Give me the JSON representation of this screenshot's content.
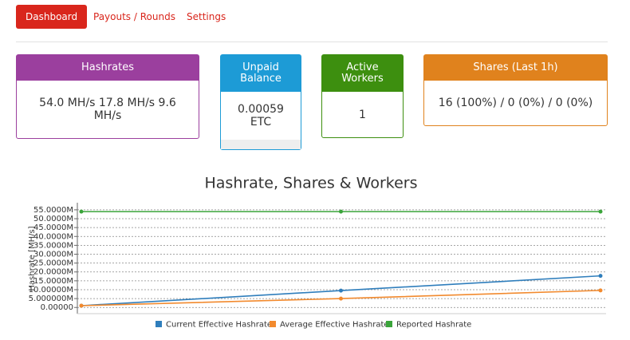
{
  "nav": {
    "tabs": [
      "Dashboard",
      "Payouts / Rounds",
      "Settings"
    ]
  },
  "cards": [
    {
      "title": "Hashrates",
      "body": "54.0 MH/s  17.8 MH/s  9.6 MH/s"
    },
    {
      "title": "Unpaid Balance",
      "body": "0.00059 ETC"
    },
    {
      "title": "Active Workers",
      "body": "1"
    },
    {
      "title": "Shares (Last 1h)",
      "body": "16 (100%) / 0 (0%) / 0 (0%)"
    }
  ],
  "chart_data": {
    "type": "line",
    "title": "Hashrate, Shares & Workers",
    "y_label": "Hashrate [MH/s]",
    "categories": [
      null,
      null,
      null
    ],
    "series": [
      {
        "name": "Current Effective Hashrate",
        "color": "#2f7ebc",
        "values": [
          1,
          9.5,
          17.8
        ]
      },
      {
        "name": "Average Effective Hashrate",
        "color": "#f28a2e",
        "values": [
          1,
          5,
          9.6
        ]
      },
      {
        "name": "Reported Hashrate",
        "color": "#3aa43a",
        "values": [
          54,
          54,
          54
        ]
      }
    ],
    "ylim": [
      -3.5,
      59
    ],
    "yticks": [
      {
        "value": 0,
        "label": "0.00000"
      },
      {
        "value": 5,
        "label": "5.000000M"
      },
      {
        "value": 10,
        "label": "10.00000M"
      },
      {
        "value": 15,
        "label": "15.0000M"
      },
      {
        "value": 20,
        "label": "20.0000M"
      },
      {
        "value": 25,
        "label": "25.0000M"
      },
      {
        "value": 30,
        "label": "30.0000M"
      },
      {
        "value": 35,
        "label": "35.0000M"
      },
      {
        "value": 40,
        "label": "40.0000M"
      },
      {
        "value": 45,
        "label": "45.0000M"
      },
      {
        "value": 50,
        "label": "50.0000M"
      },
      {
        "value": 55,
        "label": "55.0000M"
      }
    ],
    "grid": true
  }
}
